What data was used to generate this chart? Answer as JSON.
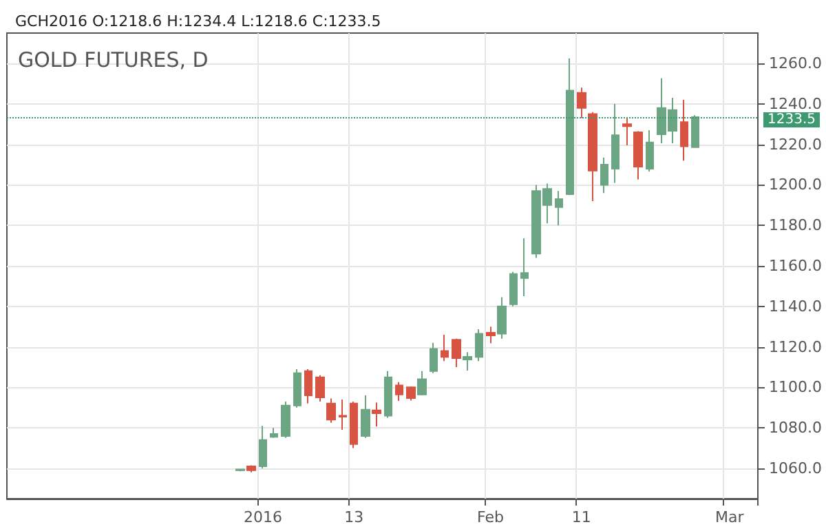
{
  "chart_data": {
    "type": "candlestick",
    "title": "GOLD FUTURES, D",
    "subtitle": "GCH2016 O:1218.6 H:1234.4 L:1218.6 C:1233.5",
    "categories": [
      null,
      null,
      null,
      null,
      null,
      null,
      null,
      null,
      null,
      null,
      null,
      null,
      null,
      null,
      null,
      null,
      null,
      null,
      null,
      null,
      null,
      null,
      "2016",
      null,
      null,
      null,
      null,
      null,
      null,
      null,
      "13",
      null,
      null,
      null,
      null,
      null,
      null,
      null,
      null,
      null,
      null,
      null,
      "Feb",
      null,
      null,
      null,
      null,
      null,
      null,
      null,
      "11",
      null,
      null,
      null,
      null,
      null,
      null,
      null,
      null,
      null,
      null,
      null,
      null,
      "Mar",
      null,
      null
    ],
    "ohlc": [
      null,
      null,
      null,
      null,
      null,
      null,
      null,
      null,
      null,
      null,
      null,
      null,
      null,
      null,
      null,
      null,
      null,
      null,
      null,
      null,
      [
        1059,
        1059.5,
        1058.5,
        1059.5
      ],
      [
        1061,
        1061.5,
        1058,
        1059
      ],
      [
        1061,
        1081,
        1060,
        1074
      ],
      [
        1075.5,
        1080,
        1075,
        1077
      ],
      [
        1076,
        1093,
        1075,
        1091
      ],
      [
        1091,
        1109,
        1090,
        1107
      ],
      [
        1108,
        1109,
        1092,
        1096
      ],
      [
        1105,
        1106,
        1093,
        1095
      ],
      [
        1092,
        1094.5,
        1082.5,
        1084
      ],
      [
        1086,
        1094,
        1079,
        1085.5
      ],
      [
        1092,
        1093,
        1070,
        1072
      ],
      [
        1076,
        1096,
        1075,
        1089
      ],
      [
        1088.6,
        1092.5,
        1080.6,
        1087.2
      ],
      [
        1086,
        1108,
        1085,
        1105
      ],
      [
        1101,
        1102.6,
        1093.3,
        1096.5
      ],
      [
        1100,
        1100.5,
        1093.5,
        1094.7
      ],
      [
        1096.5,
        1108,
        1096,
        1104
      ],
      [
        1108,
        1122,
        1107,
        1119
      ],
      [
        1118,
        1126,
        1113,
        1115
      ],
      [
        1123.5,
        1124,
        1110,
        1114.4
      ],
      [
        1113.7,
        1117.4,
        1108.3,
        1115.1
      ],
      [
        1115,
        1128.7,
        1113,
        1126.5
      ],
      [
        1127,
        1130,
        1121.8,
        1125.6
      ],
      [
        1126.5,
        1144.5,
        1124,
        1140
      ],
      [
        1141,
        1157,
        1140,
        1156
      ],
      [
        1154,
        1173.6,
        1145,
        1156.5
      ],
      [
        1166,
        1200,
        1164,
        1197
      ],
      [
        1190,
        1200.7,
        1181,
        1198
      ],
      [
        1189,
        1197,
        1180,
        1193
      ],
      [
        1195.4,
        1262.5,
        1195,
        1246.6
      ],
      [
        1245.5,
        1248,
        1233,
        1238
      ],
      [
        1235,
        1236,
        1192,
        1207
      ],
      [
        1200,
        1213.5,
        1196,
        1210
      ],
      [
        1208,
        1240,
        1201,
        1224.6
      ],
      [
        1230,
        1233,
        1219.5,
        1229
      ],
      [
        1226,
        1226.5,
        1202.7,
        1209
      ],
      [
        1208,
        1227,
        1206.6,
        1221
      ],
      [
        1225,
        1252.6,
        1220.6,
        1238
      ],
      [
        1226.7,
        1243,
        1220.6,
        1237
      ],
      [
        1231,
        1242,
        1212,
        1219
      ],
      [
        1218.6,
        1234.4,
        1218.6,
        1233.5
      ],
      null,
      null,
      null,
      null,
      null
    ],
    "colors": [
      null,
      null,
      null,
      null,
      null,
      null,
      null,
      null,
      null,
      null,
      null,
      null,
      null,
      null,
      null,
      null,
      null,
      null,
      null,
      null,
      "#6ba583",
      "#d75442",
      "#6ba583",
      "#6ba583",
      "#6ba583",
      "#6ba583",
      "#d75442",
      "#d75442",
      "#d75442",
      "#d75442",
      "#d75442",
      "#6ba583",
      "#d75442",
      "#6ba583",
      "#d75442",
      "#d75442",
      "#6ba583",
      "#6ba583",
      "#d75442",
      "#d75442",
      "#6ba583",
      "#6ba583",
      "#d75442",
      "#6ba583",
      "#6ba583",
      "#6ba583",
      "#6ba583",
      "#6ba583",
      "#6ba583",
      "#6ba583",
      "#d75442",
      "#d75442",
      "#6ba583",
      "#6ba583",
      "#d75442",
      "#d75442",
      "#6ba583",
      "#6ba583",
      "#6ba583",
      "#d75442",
      "#6ba583",
      null,
      null,
      null,
      null,
      null
    ],
    "ylim": [
      1045,
      1275
    ],
    "yticks": [
      {
        "value": 1060,
        "label": "1060.0"
      },
      {
        "value": 1080,
        "label": "1080.0"
      },
      {
        "value": 1100,
        "label": "1100.0"
      },
      {
        "value": 1120,
        "label": "1120.0"
      },
      {
        "value": 1140,
        "label": "1140.0"
      },
      {
        "value": 1160,
        "label": "1160.0"
      },
      {
        "value": 1180,
        "label": "1180.0"
      },
      {
        "value": 1200,
        "label": "1200.0"
      },
      {
        "value": 1220,
        "label": "1220.0"
      },
      {
        "value": 1240,
        "label": "1240.0"
      },
      {
        "value": 1260,
        "label": "1260.0"
      }
    ],
    "grid": true,
    "ref_lines": [
      {
        "axis": "y",
        "value": 1233.5,
        "label": "1233.5",
        "color": "#3d9970",
        "line_style": "dotted"
      }
    ]
  }
}
